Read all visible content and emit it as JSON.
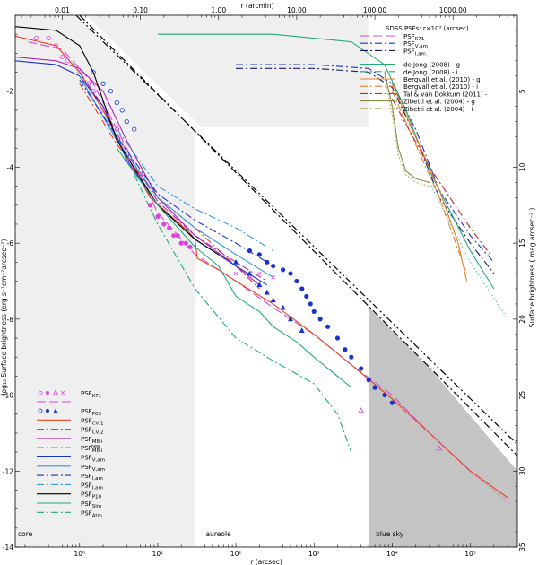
{
  "chart_data": {
    "type": "line",
    "axes": {
      "xbottom": {
        "label": "r (arcsec)",
        "scale": "log",
        "range": [
          0.15,
          400000
        ],
        "ticks": [
          {
            "v": 1,
            "t": "10⁰"
          },
          {
            "v": 10,
            "t": "10¹"
          },
          {
            "v": 100,
            "t": "10²"
          },
          {
            "v": 1000,
            "t": "10³"
          },
          {
            "v": 10000,
            "t": "10⁴"
          },
          {
            "v": 100000,
            "t": "10⁵"
          }
        ]
      },
      "xtop": {
        "label": "r (arcmin)",
        "scale": "log",
        "ticks": [
          {
            "v": 0.01,
            "t": "0.01"
          },
          {
            "v": 0.1,
            "t": "0.10"
          },
          {
            "v": 1,
            "t": "1.00"
          },
          {
            "v": 10,
            "t": "10.00"
          },
          {
            "v": 100,
            "t": "100.00"
          },
          {
            "v": 1000,
            "t": "1000.00"
          }
        ]
      },
      "yleft": {
        "label": "log₁₀ Surface brightness (erg s⁻¹cm⁻²arcsec⁻²)",
        "range": [
          -14,
          0
        ],
        "ticks": [
          {
            "v": -2,
            "t": "-2"
          },
          {
            "v": -4,
            "t": "-4"
          },
          {
            "v": -6,
            "t": "-6"
          },
          {
            "v": -8,
            "t": "-8"
          },
          {
            "v": -10,
            "t": "-10"
          },
          {
            "v": -12,
            "t": "-12"
          },
          {
            "v": -14,
            "t": "-14"
          }
        ]
      },
      "yright": {
        "label": "Surface brightness ( mag arcsec⁻² )",
        "range": [
          0,
          35
        ],
        "ticks": [
          {
            "v": 5,
            "t": "5"
          },
          {
            "v": 10,
            "t": "10"
          },
          {
            "v": 15,
            "t": "15"
          },
          {
            "v": 20,
            "t": "20"
          },
          {
            "v": 25,
            "t": "25"
          },
          {
            "v": 30,
            "t": "30"
          },
          {
            "v": 35,
            "t": "35"
          }
        ]
      }
    },
    "regions": [
      {
        "name": "core",
        "label": "core",
        "x": [
          0.15,
          30
        ]
      },
      {
        "name": "aureole",
        "label": "aureole",
        "x": [
          30,
          5000
        ]
      },
      {
        "name": "blue-sky",
        "label": "blue sky",
        "x": [
          5000,
          400000
        ]
      }
    ],
    "legend_left": {
      "placement": "bottom-left",
      "entries": [
        {
          "label": "PSF",
          "sub": "K71",
          "sym": "magenta-symbols"
        },
        {
          "label": "",
          "sub": "",
          "sym": "magenta-longdash"
        },
        {
          "label": "PSF",
          "sub": "P03",
          "sym": "blue-symbols"
        },
        {
          "label": "PSF",
          "sub": "CV,1",
          "sym": "#e8401c"
        },
        {
          "label": "PSF",
          "sub": "CV,2",
          "sym": "#e8401c-dashdot"
        },
        {
          "label": "PSF",
          "sub": "M8-i",
          "sym": "#b026b0"
        },
        {
          "label": "PSF",
          "sub": "M8-i",
          "sup": "new",
          "sym": "#b026b0-dashdot"
        },
        {
          "label": "PSF",
          "sub": "V,am",
          "sym": "#1a33cc"
        },
        {
          "label": "PSF",
          "sub": "V,am",
          "sym": "#3399dd"
        },
        {
          "label": "PSF",
          "sub": "I,am",
          "sym": "#1a33cc-dashdot"
        },
        {
          "label": "PSF",
          "sub": "I,am",
          "sym": "#3399dd-dashdot"
        },
        {
          "label": "PSF",
          "sub": "P10",
          "sym": "#000000"
        },
        {
          "label": "PSF",
          "sub": "Slm",
          "sym": "#22aa77"
        },
        {
          "label": "PSF",
          "sub": "Atm",
          "sym": "#22aa77-dashdot"
        }
      ]
    },
    "legend_right": {
      "title": "SDSS PSFs: r×10³ (arcsec)",
      "placement": "top-right",
      "entries": [
        {
          "label": "PSF",
          "sub": "K71",
          "color": "#dd44dd",
          "dash": "10,4"
        },
        {
          "label": "PSF",
          "sub": "V,am",
          "color": "#1a33cc",
          "dash": "8,3,2,3"
        },
        {
          "label": "PSF",
          "sub": "I,am",
          "color": "#1a1a66",
          "dash": "8,3,2,3"
        },
        {
          "label": "de Jong (2008) - g",
          "color": "#22aa77",
          "dash": ""
        },
        {
          "label": "de Jong (2008) - i",
          "color": "#22aa77",
          "dash": "8,3,2,3"
        },
        {
          "label": "Bergvall et al. (2010) - g",
          "color": "#e87f2a",
          "dash": ""
        },
        {
          "label": "Bergvall et al. (2010) - i",
          "color": "#e87f2a",
          "dash": "8,3,2,3"
        },
        {
          "label": "Tal & van Dokkum (2011) - i",
          "color": "#cc2222",
          "dash": "8,3,2,3"
        },
        {
          "label": "Zibetti et al. (2004) - g",
          "color": "#8a8a44",
          "dash": ""
        },
        {
          "label": "Zibetti et al. (2004) - i",
          "color": "#b0b060",
          "dash": "8,3,2,3"
        }
      ]
    },
    "series": [
      {
        "name": "PSF K71",
        "color": "#dd44dd",
        "dash": "10,4",
        "x": [
          0.22,
          0.6,
          1.5,
          4,
          10,
          30,
          100,
          300,
          1000,
          3000,
          10000,
          30000,
          100000
        ],
        "y": [
          -0.7,
          -0.9,
          -1.8,
          -3.5,
          -5.2,
          -6.3,
          -7.0,
          -7.7,
          -8.4,
          -9.2,
          -10.0,
          -11.0,
          -12.0
        ]
      },
      {
        "name": "PSF K71 extrapolated",
        "color": "#dd44dd",
        "dash": "1,2",
        "x": [
          100000,
          300000
        ],
        "y": [
          -12.0,
          -12.8
        ]
      },
      {
        "name": "PSF CV,1",
        "color": "#e8401c",
        "dash": "",
        "x": [
          0.15,
          0.5,
          1,
          2,
          4,
          8,
          15,
          25,
          30,
          32,
          60,
          100,
          300,
          1000,
          3000,
          10000,
          30000,
          100000,
          300000
        ],
        "y": [
          -0.55,
          -0.8,
          -1.5,
          -2.5,
          -3.7,
          -4.8,
          -5.3,
          -5.7,
          -5.9,
          -6.4,
          -6.7,
          -7.0,
          -7.6,
          -8.4,
          -9.2,
          -10.1,
          -11.0,
          -12.0,
          -12.7
        ]
      },
      {
        "name": "PSF CV,2",
        "color": "#e8401c",
        "dash": "8,3,2,3",
        "x": [
          1,
          3,
          10,
          30,
          100,
          200
        ],
        "y": [
          -1.8,
          -3.4,
          -4.8,
          -5.6,
          -6.6,
          -7.2
        ]
      },
      {
        "name": "PSF M8-i",
        "color": "#b026b0",
        "dash": "",
        "x": [
          0.15,
          0.5,
          1,
          2,
          4,
          10,
          30,
          100,
          200
        ],
        "y": [
          -1.1,
          -1.2,
          -1.4,
          -2.0,
          -3.3,
          -4.8,
          -5.8,
          -6.6,
          -7.1
        ]
      },
      {
        "name": "PSF M8-i new",
        "color": "#b026b0",
        "dash": "8,3,2,3",
        "x": [
          1,
          2,
          4,
          10,
          30,
          100,
          250
        ],
        "y": [
          -1.5,
          -2.4,
          -3.6,
          -4.9,
          -5.8,
          -6.5,
          -7.0
        ]
      },
      {
        "name": "PSF V,am (blue)",
        "color": "#1a33cc",
        "dash": "",
        "x": [
          0.15,
          0.5,
          1,
          2,
          4,
          10,
          30,
          100,
          250
        ],
        "y": [
          -1.2,
          -1.3,
          -1.6,
          -2.4,
          -3.8,
          -5.0,
          -5.9,
          -6.6,
          -7.1
        ]
      },
      {
        "name": "PSF V,am (light)",
        "color": "#3399dd",
        "dash": "",
        "x": [
          1,
          3,
          10,
          30,
          100,
          300
        ],
        "y": [
          -1.6,
          -3.3,
          -4.8,
          -5.6,
          -6.3,
          -6.9
        ]
      },
      {
        "name": "PSF I,am (blue)",
        "color": "#1a33cc",
        "dash": "8,3,2,3",
        "x": [
          1,
          3,
          10,
          30,
          100,
          300
        ],
        "y": [
          -1.7,
          -3.2,
          -4.7,
          -5.4,
          -6.0,
          -6.6
        ]
      },
      {
        "name": "PSF I,am (light)",
        "color": "#3399dd",
        "dash": "8,3,2,3",
        "x": [
          3,
          10,
          30,
          100,
          300
        ],
        "y": [
          -3.0,
          -4.5,
          -5.1,
          -5.6,
          -6.2
        ]
      },
      {
        "name": "PSF P10",
        "color": "#000000",
        "dash": "",
        "x": [
          0.15,
          0.5,
          1,
          1.5,
          3,
          10,
          30,
          60
        ],
        "y": [
          -0.3,
          -0.4,
          -0.8,
          -1.5,
          -3.3,
          -5.0,
          -5.9,
          -6.3
        ]
      },
      {
        "name": "PSF Slm",
        "color": "#22aa77",
        "dash": "",
        "x": [
          3,
          10,
          30,
          60,
          100,
          200,
          300,
          600,
          1000,
          3000
        ],
        "y": [
          -3.5,
          -5.0,
          -6.1,
          -6.6,
          -7.4,
          -7.8,
          -8.2,
          -8.6,
          -9.0,
          -9.8
        ]
      },
      {
        "name": "PSF Atm",
        "color": "#22aa77",
        "dash": "8,3,2,3",
        "x": [
          5,
          10,
          30,
          100,
          300,
          1000,
          2000,
          3000
        ],
        "y": [
          -4.2,
          -5.5,
          -7.2,
          -8.5,
          -9.1,
          -9.7,
          -10.5,
          -11.5
        ]
      },
      {
        "name": "SDSS PSF V,am",
        "color": "#1a33cc",
        "dash": "8,3,2,3",
        "x": [
          100,
          1000,
          5000,
          10000,
          20000,
          40000,
          100000,
          200000
        ],
        "y": [
          -1.3,
          -1.3,
          -1.4,
          -1.8,
          -3.0,
          -4.6,
          -5.8,
          -6.5
        ]
      },
      {
        "name": "SDSS PSF I,am",
        "color": "#1a1a66",
        "dash": "8,3,2,3",
        "x": [
          100,
          1000,
          5000,
          10000,
          20000,
          40000,
          100000,
          200000
        ],
        "y": [
          -1.4,
          -1.4,
          -1.5,
          -1.9,
          -3.2,
          -4.8,
          -6.0,
          -6.8
        ]
      },
      {
        "name": "de Jong (2008) - g",
        "color": "#22aa77",
        "dash": "",
        "x": [
          10,
          300,
          3000,
          8000,
          15000,
          30000,
          100000,
          200000
        ],
        "y": [
          -0.5,
          -0.5,
          -0.7,
          -1.3,
          -2.5,
          -4.1,
          -6.2,
          -7.2
        ]
      },
      {
        "name": "de Jong (2008) - i",
        "color": "#22aa77",
        "dash": "1,3",
        "x": [
          30000,
          100000,
          300000
        ],
        "y": [
          -4.4,
          -6.5,
          -8.0
        ]
      },
      {
        "name": "Bergvall et al. (2010) - g",
        "color": "#e87f2a",
        "dash": "",
        "x": [
          10000,
          20000,
          40000,
          70000,
          90000
        ],
        "y": [
          -1.8,
          -3.2,
          -4.6,
          -6.0,
          -7.0
        ]
      },
      {
        "name": "Bergvall et al. (2010) - i",
        "color": "#e87f2a",
        "dash": "8,3,2,3",
        "x": [
          10000,
          20000,
          40000,
          90000
        ],
        "y": [
          -2.0,
          -3.4,
          -4.8,
          -6.8
        ]
      },
      {
        "name": "Tal & van Dokkum (2011) - i",
        "color": "#cc2222",
        "dash": "8,3,2,3",
        "x": [
          10000,
          30000,
          100000,
          180000
        ],
        "y": [
          -2.2,
          -4.0,
          -5.6,
          -6.3
        ]
      },
      {
        "name": "Zibetti et al. (2004) - g",
        "color": "#8a8a44",
        "dash": "",
        "x": [
          8000,
          10000,
          12000,
          15000,
          20000,
          30000
        ],
        "y": [
          -1.5,
          -2.4,
          -3.5,
          -4.1,
          -4.3,
          -4.4
        ]
      },
      {
        "name": "Zibetti et al. (2004) - i",
        "color": "#b0b060",
        "dash": "2,2",
        "x": [
          8000,
          10000,
          12000,
          15000,
          20000,
          30000
        ],
        "y": [
          -1.6,
          -2.6,
          -3.7,
          -4.2,
          -4.4,
          -4.5
        ]
      },
      {
        "name": "reference line 1",
        "color": "#000000",
        "dash": "8,3,2,3,2,3",
        "x": [
          0.9,
          400000
        ],
        "y": [
          0,
          -11.3
        ]
      },
      {
        "name": "reference line 2",
        "color": "#000000",
        "dash": "8,3,2,3",
        "x": [
          1.0,
          400000
        ],
        "y": [
          0,
          -11.6
        ]
      }
    ],
    "markers": [
      {
        "name": "K71 open circles",
        "color": "#dd44dd",
        "fill": "none",
        "shape": "circle",
        "x": [
          0.28,
          0.4,
          0.5,
          0.6,
          0.7,
          1.0,
          1.3,
          1.5,
          2.0,
          3.0,
          4.0,
          5.0,
          6.0
        ],
        "y": [
          -0.6,
          -0.6,
          -0.8,
          -1.1,
          -1.2,
          -1.5,
          -1.8,
          -2.0,
          -2.5,
          -3.0,
          -3.8,
          -4.0,
          -4.2
        ]
      },
      {
        "name": "K71 filled dots",
        "color": "#dd44dd",
        "fill": "#dd44dd",
        "shape": "circle",
        "x": [
          8,
          10,
          12,
          14,
          16,
          18,
          20,
          23,
          26
        ],
        "y": [
          -5.0,
          -5.3,
          -5.5,
          -5.6,
          -5.8,
          -5.8,
          -6.0,
          -6.0,
          -6.1
        ]
      },
      {
        "name": "K71 triangles",
        "color": "#dd44dd",
        "fill": "none",
        "shape": "triangle",
        "x": [
          4000,
          40000
        ],
        "y": [
          -10.4,
          -11.4
        ]
      },
      {
        "name": "K71 crosses",
        "color": "#dd44dd",
        "fill": "none",
        "shape": "x",
        "x": [
          100,
          150,
          200,
          300
        ],
        "y": [
          -6.8,
          -6.9,
          -6.8,
          -6.9
        ]
      },
      {
        "name": "P03 open circles",
        "color": "#1a33cc",
        "fill": "none",
        "shape": "circle",
        "x": [
          1.5,
          2,
          2.5,
          3,
          3.5,
          4,
          5
        ],
        "y": [
          -1.5,
          -1.8,
          -2.0,
          -2.3,
          -2.5,
          -2.8,
          -3.0
        ]
      },
      {
        "name": "P03 filled dots",
        "color": "#1a33cc",
        "fill": "#1a33cc",
        "shape": "circle",
        "x": [
          150,
          200,
          250,
          300,
          400,
          500,
          600,
          700,
          800,
          900,
          1000,
          1200,
          1500,
          2000,
          2500,
          3000,
          4000,
          5000,
          6000,
          8000,
          10000
        ],
        "y": [
          -6.2,
          -6.3,
          -6.5,
          -6.6,
          -6.7,
          -6.8,
          -7.0,
          -7.2,
          -7.4,
          -7.6,
          -7.8,
          -8.0,
          -8.2,
          -8.5,
          -8.8,
          -9.0,
          -9.3,
          -9.6,
          -9.8,
          -10.0,
          -10.2
        ]
      },
      {
        "name": "P03 triangles",
        "color": "#1a33cc",
        "fill": "#1a33cc",
        "shape": "triangle",
        "x": [
          100,
          150,
          200,
          250,
          300,
          400,
          500,
          700
        ],
        "y": [
          -6.5,
          -6.8,
          -7.1,
          -7.3,
          -7.5,
          -7.7,
          -8.0,
          -8.3
        ]
      }
    ]
  }
}
